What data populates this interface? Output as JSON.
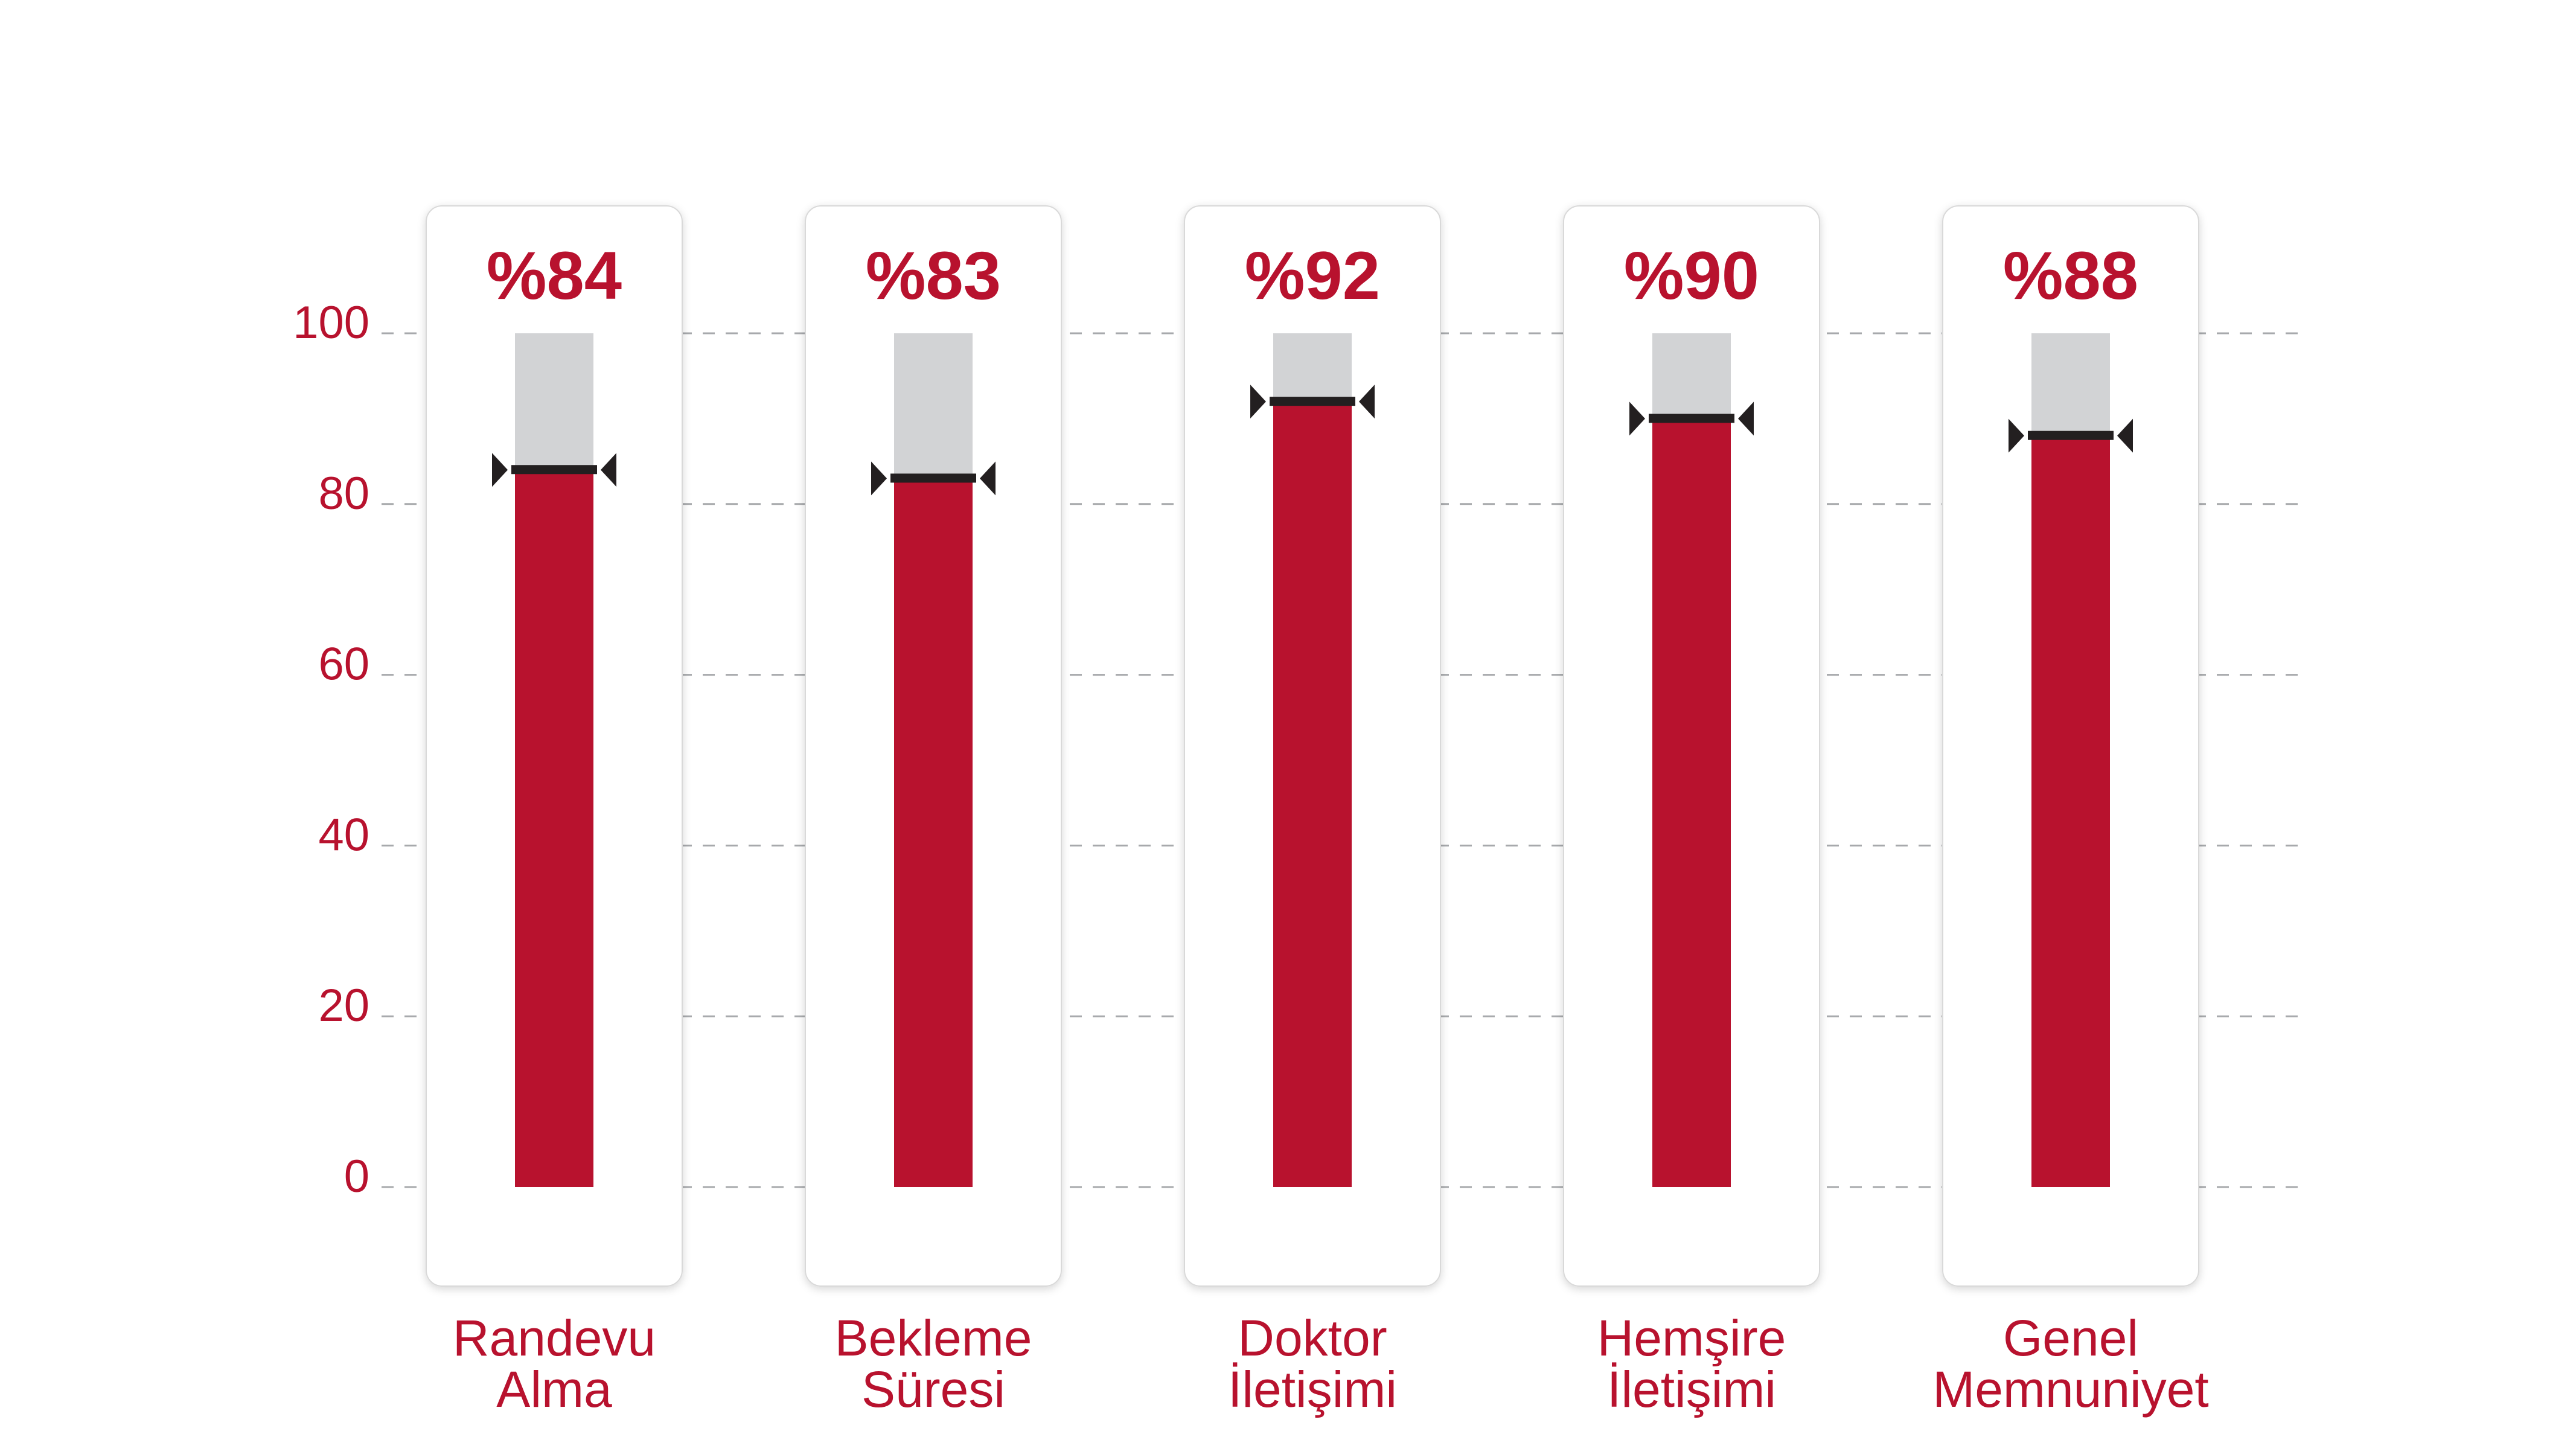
{
  "chart_data": {
    "type": "bar",
    "categories": [
      [
        "Randevu",
        "Alma"
      ],
      [
        "Bekleme",
        "Süresi"
      ],
      [
        "Doktor",
        "İletişimi"
      ],
      [
        "Hemşire",
        "İletişimi"
      ],
      [
        "Genel",
        "Memnuniyet"
      ]
    ],
    "values": [
      84,
      83,
      92,
      90,
      88
    ],
    "value_labels": [
      "%84",
      "%83",
      "%92",
      "%90",
      "%88"
    ],
    "ylim": [
      0,
      100
    ],
    "yticks": [
      "0",
      "20",
      "40",
      "60",
      "80",
      "100"
    ],
    "grid": true,
    "colors": {
      "bar": "#b8122e",
      "track": "#d2d3d5",
      "text": "#b8122e",
      "marker": "#231f20",
      "grid": "#a7a9ac",
      "card_border": "#d9d9d9"
    }
  }
}
